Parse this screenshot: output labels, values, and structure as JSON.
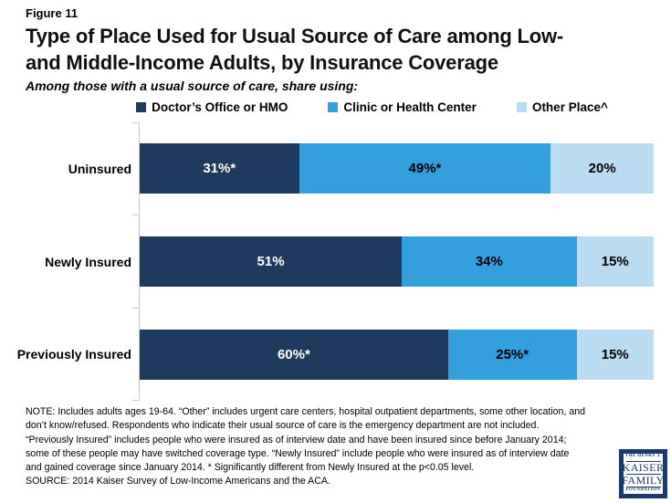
{
  "figure_label": "Figure 11",
  "title": "Type of Place Used for Usual Source of Care among Low-\nand Middle-Income Adults, by Insurance Coverage",
  "subtitle": "Among those with a usual source of care, share using:",
  "chart_data": {
    "type": "bar",
    "orientation": "horizontal_stacked",
    "title": "Type of Place Used for Usual Source of Care among Low- and Middle-Income Adults, by Insurance Coverage",
    "categories": [
      "Uninsured",
      "Newly Insured",
      "Previously Insured"
    ],
    "series": [
      {
        "name": "Doctor’s Office or HMO",
        "values": [
          31,
          51,
          60
        ],
        "labels": [
          "31%*",
          "51%",
          "60%*"
        ],
        "color": "#1e3a5f",
        "label_color": "#ffffff"
      },
      {
        "name": "Clinic or Health Center",
        "values": [
          49,
          34,
          25
        ],
        "labels": [
          "49%*",
          "34%",
          "25%*"
        ],
        "color": "#33a0dd",
        "label_color": "#000000"
      },
      {
        "name": "Other Place^",
        "values": [
          20,
          15,
          15
        ],
        "labels": [
          "20%",
          "15%",
          "15%"
        ],
        "color": "#b9dcf2",
        "label_color": "#000000"
      }
    ],
    "xlim": [
      0,
      100
    ],
    "legend_position": "top",
    "grid": false,
    "axis_color": "#c9c9c9"
  },
  "footer": {
    "note": "NOTE: Includes adults ages 19-64. “Other” includes urgent care centers, hospital outpatient departments, some other location, and\ndon’t know/refused. Respondents who indicate their usual source of care is the emergency department are not included.\n“Previously Insured” includes people who were insured as of interview date and have been insured since before January 2014;\nsome of these people may have switched coverage type. “Newly Insured” include people who were insured as of interview date\nand gained coverage since January 2014. * Significantly different from Newly Insured at the p<0.05 level.",
    "source": "SOURCE: 2014 Kaiser Survey of Low-Income Americans and the ACA."
  },
  "logo": {
    "line1": "THE HENRY J.",
    "line2": "KAISER",
    "line3": "FAMILY",
    "line4": "FOUNDATION"
  }
}
